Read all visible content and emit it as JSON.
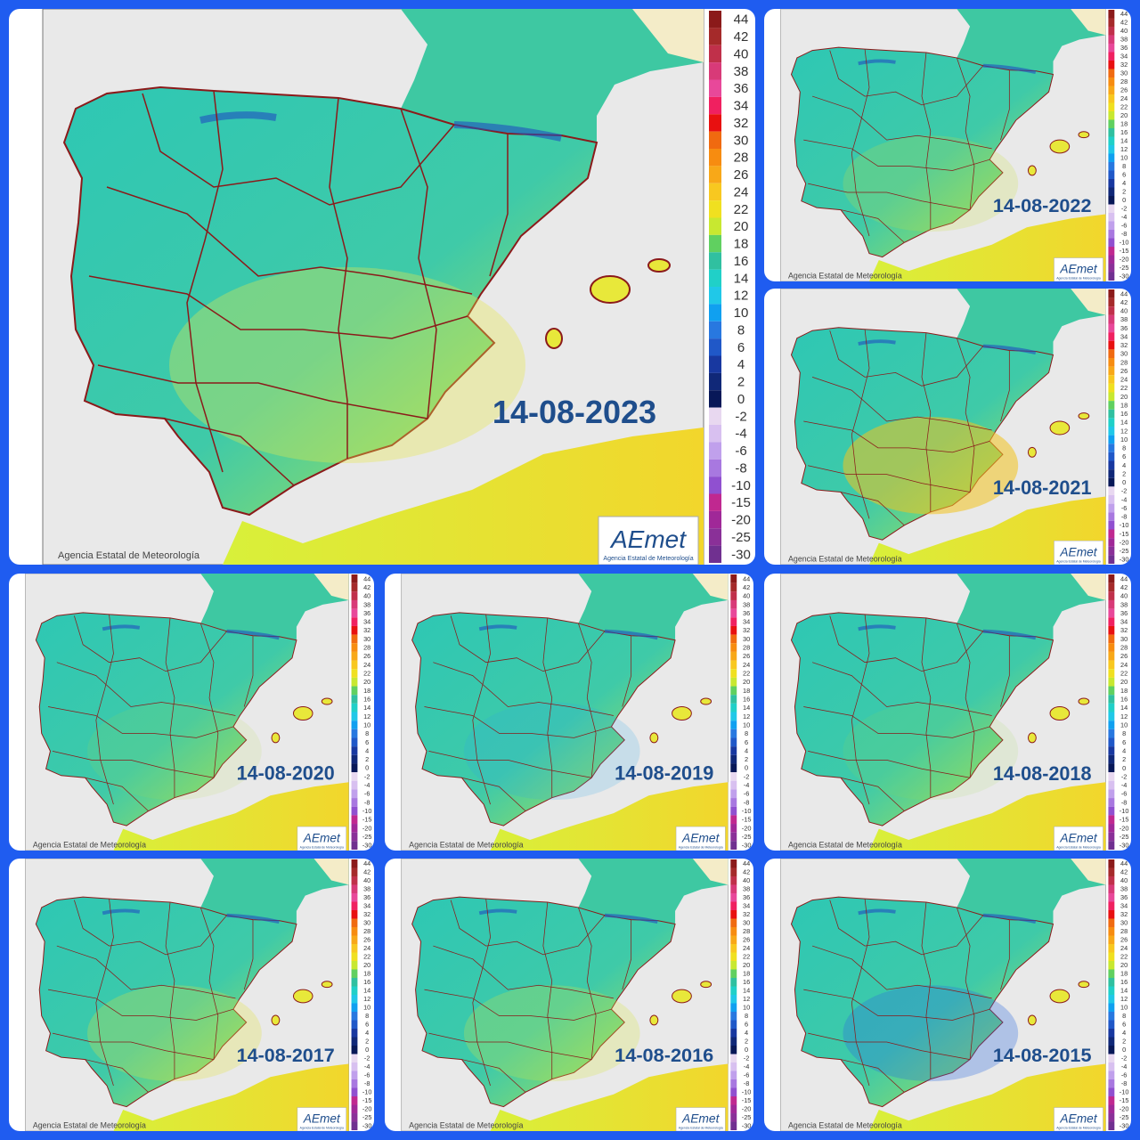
{
  "panels": [
    {
      "date": "14-08-2023"
    },
    {
      "date": "14-08-2022"
    },
    {
      "date": "14-08-2021"
    },
    {
      "date": "14-08-2020"
    },
    {
      "date": "14-08-2019"
    },
    {
      "date": "14-08-2018"
    },
    {
      "date": "14-08-2017"
    },
    {
      "date": "14-08-2016"
    },
    {
      "date": "14-08-2015"
    }
  ],
  "legend": {
    "labels": [
      "44",
      "42",
      "40",
      "38",
      "36",
      "34",
      "32",
      "30",
      "28",
      "26",
      "24",
      "22",
      "20",
      "18",
      "16",
      "14",
      "12",
      "10",
      "8",
      "6",
      "4",
      "2",
      "0",
      "-2",
      "-4",
      "-6",
      "-8",
      "-10",
      "-15",
      "-20",
      "-25",
      "-30"
    ]
  },
  "footer": {
    "credit": "Agencia Estatal de Meteorología",
    "logo": "AEmet",
    "logo_subtitle": "Agencia Estatal de Meteorología"
  }
}
